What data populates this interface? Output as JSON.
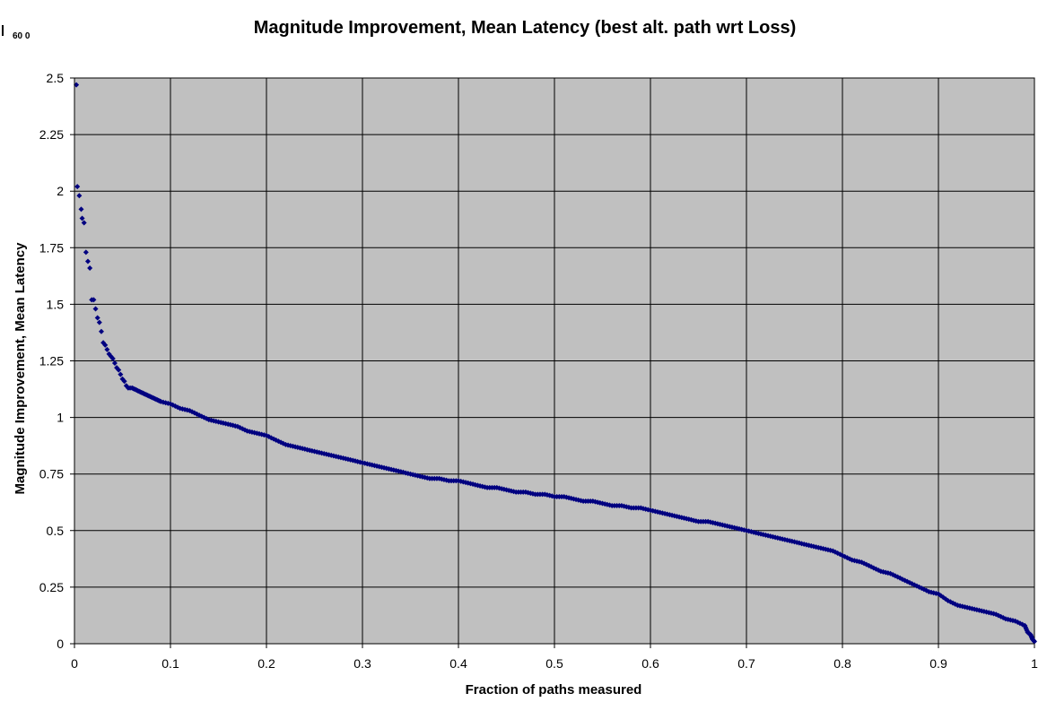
{
  "corner_label": "60 0",
  "chart_data": {
    "type": "scatter",
    "title": "Magnitude Improvement, Mean Latency (best alt. path wrt Loss)",
    "xlabel": "Fraction of paths measured",
    "ylabel": "Magnitude Improvement, Mean Latency",
    "xlim": [
      0,
      1
    ],
    "ylim": [
      0,
      2.5
    ],
    "xticks": [
      "0",
      "0.1",
      "0.2",
      "0.3",
      "0.4",
      "0.5",
      "0.6",
      "0.7",
      "0.8",
      "0.9",
      "1"
    ],
    "yticks": [
      "0",
      "0.25",
      "0.5",
      "0.75",
      "1",
      "1.25",
      "1.5",
      "1.75",
      "2",
      "2.25",
      "2.5"
    ],
    "grid": true,
    "legend": "none",
    "colors": {
      "plot_background": "#C0C0C0",
      "marker": "#000080",
      "grid": "#000000"
    },
    "series": [
      {
        "marker": "diamond",
        "x": [
          0.002,
          0.003,
          0.005,
          0.007,
          0.008,
          0.01,
          0.012,
          0.014,
          0.016,
          0.018,
          0.02,
          0.022,
          0.024,
          0.026,
          0.028,
          0.03,
          0.032,
          0.034,
          0.036,
          0.038,
          0.04,
          0.042,
          0.044,
          0.046,
          0.048,
          0.05,
          0.052,
          0.054,
          0.056,
          0.058,
          0.06,
          0.065,
          0.07,
          0.075,
          0.08,
          0.085,
          0.09,
          0.1,
          0.11,
          0.12,
          0.13,
          0.14,
          0.15,
          0.16,
          0.17,
          0.18,
          0.19,
          0.2,
          0.21,
          0.22,
          0.23,
          0.24,
          0.25,
          0.26,
          0.27,
          0.28,
          0.29,
          0.3,
          0.31,
          0.32,
          0.33,
          0.34,
          0.35,
          0.36,
          0.37,
          0.38,
          0.39,
          0.4,
          0.41,
          0.42,
          0.43,
          0.44,
          0.45,
          0.46,
          0.47,
          0.48,
          0.49,
          0.5,
          0.51,
          0.52,
          0.53,
          0.54,
          0.55,
          0.56,
          0.57,
          0.58,
          0.59,
          0.6,
          0.61,
          0.62,
          0.63,
          0.64,
          0.65,
          0.66,
          0.67,
          0.68,
          0.69,
          0.7,
          0.71,
          0.72,
          0.73,
          0.74,
          0.75,
          0.76,
          0.77,
          0.78,
          0.79,
          0.8,
          0.81,
          0.82,
          0.83,
          0.84,
          0.85,
          0.86,
          0.87,
          0.88,
          0.89,
          0.9,
          0.91,
          0.92,
          0.93,
          0.94,
          0.95,
          0.96,
          0.97,
          0.98,
          0.99,
          0.993,
          0.996,
          0.998,
          1.0
        ],
        "y": [
          2.47,
          2.02,
          1.98,
          1.92,
          1.88,
          1.86,
          1.73,
          1.69,
          1.66,
          1.52,
          1.52,
          1.48,
          1.44,
          1.42,
          1.38,
          1.33,
          1.32,
          1.3,
          1.28,
          1.27,
          1.26,
          1.24,
          1.22,
          1.21,
          1.19,
          1.17,
          1.16,
          1.14,
          1.13,
          1.13,
          1.13,
          1.12,
          1.11,
          1.1,
          1.09,
          1.08,
          1.07,
          1.06,
          1.04,
          1.03,
          1.01,
          0.99,
          0.98,
          0.97,
          0.96,
          0.94,
          0.93,
          0.92,
          0.9,
          0.88,
          0.87,
          0.86,
          0.85,
          0.84,
          0.83,
          0.82,
          0.81,
          0.8,
          0.79,
          0.78,
          0.77,
          0.76,
          0.75,
          0.74,
          0.73,
          0.73,
          0.72,
          0.72,
          0.71,
          0.7,
          0.69,
          0.69,
          0.68,
          0.67,
          0.67,
          0.66,
          0.66,
          0.65,
          0.65,
          0.64,
          0.63,
          0.63,
          0.62,
          0.61,
          0.61,
          0.6,
          0.6,
          0.59,
          0.58,
          0.57,
          0.56,
          0.55,
          0.54,
          0.54,
          0.53,
          0.52,
          0.51,
          0.5,
          0.49,
          0.48,
          0.47,
          0.46,
          0.45,
          0.44,
          0.43,
          0.42,
          0.41,
          0.39,
          0.37,
          0.36,
          0.34,
          0.32,
          0.31,
          0.29,
          0.27,
          0.25,
          0.23,
          0.22,
          0.19,
          0.17,
          0.16,
          0.15,
          0.14,
          0.13,
          0.11,
          0.1,
          0.08,
          0.05,
          0.04,
          0.02,
          0.01
        ]
      }
    ]
  }
}
